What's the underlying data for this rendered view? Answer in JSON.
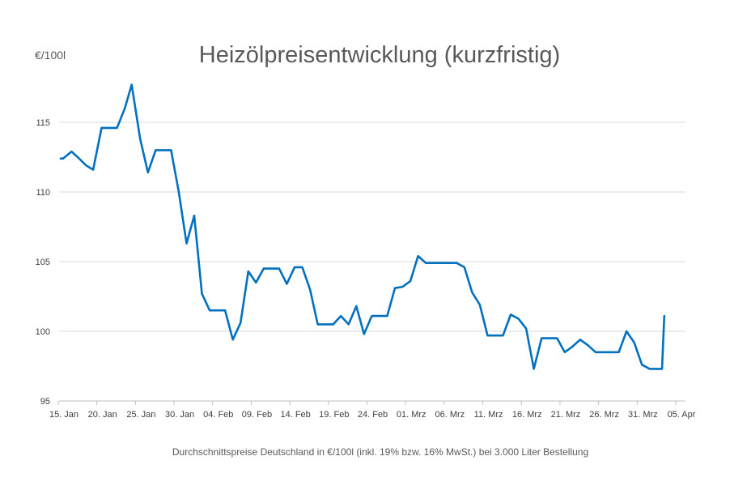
{
  "chart_data": {
    "type": "line",
    "title": "Heizölpreisentwicklung (kurzfristig)",
    "ylabel": "€/100l",
    "caption": "Durchschnittspreise Deutschland in €/100l (inkl. 19% bzw. 16%  MwSt.) bei 3.000 Liter Bestellung",
    "ylim": [
      95,
      118
    ],
    "yticks": [
      95,
      100,
      105,
      110,
      115
    ],
    "xlim": [
      0,
      80
    ],
    "xticks": [
      {
        "x": 0,
        "label": "15. Jan"
      },
      {
        "x": 5,
        "label": "20. Jan"
      },
      {
        "x": 10,
        "label": "25. Jan"
      },
      {
        "x": 15,
        "label": "30. Jan"
      },
      {
        "x": 20,
        "label": "04. Feb"
      },
      {
        "x": 25,
        "label": "09. Feb"
      },
      {
        "x": 30,
        "label": "14. Feb"
      },
      {
        "x": 35,
        "label": "19. Feb"
      },
      {
        "x": 40,
        "label": "24. Feb"
      },
      {
        "x": 45,
        "label": "01. Mrz"
      },
      {
        "x": 50,
        "label": "06. Mrz"
      },
      {
        "x": 55,
        "label": "11. Mrz"
      },
      {
        "x": 60,
        "label": "16. Mrz"
      },
      {
        "x": 65,
        "label": "21. Mrz"
      },
      {
        "x": 70,
        "label": "26. Mrz"
      },
      {
        "x": 75,
        "label": "31. Mrz"
      },
      {
        "x": 80,
        "label": "05. Apr"
      }
    ],
    "grid": true,
    "series": [
      {
        "color": "#0070c0",
        "x": [
          0,
          0.3,
          1.4,
          2.2,
          3.3,
          4.2,
          5.3,
          6.3,
          7.3,
          8.3,
          9.2,
          10.3,
          11.3,
          12.3,
          13.3,
          14.3,
          15.3,
          16.3,
          17.3,
          18.3,
          19.3,
          20.3,
          21.3,
          22.3,
          23.3,
          24.3,
          25.3,
          26.3,
          27.3,
          28.3,
          29.3,
          30.3,
          31.3,
          32.3,
          33.3,
          34.3,
          35.3,
          36.3,
          37.3,
          38.3,
          39.3,
          40.3,
          41.3,
          42.3,
          43.3,
          44.3,
          45.3,
          46.3,
          47.3,
          48.3,
          49.3,
          50.3,
          51.3,
          52.3,
          53.3,
          54.3,
          55.3,
          56.3,
          57.3,
          58.3,
          59.3,
          60.3,
          61.3,
          62.3,
          63.3,
          64.3,
          65.3,
          66.3,
          67.3,
          68.3,
          69.3,
          70.3,
          71.3,
          72.3,
          73.3,
          74.3,
          75.3,
          76.3,
          77.3,
          77.9,
          78.2
        ],
        "y": [
          112.4,
          112.4,
          112.9,
          112.5,
          111.9,
          111.6,
          114.6,
          114.6,
          114.6,
          116.0,
          117.7,
          113.8,
          111.4,
          113.0,
          113.0,
          113.0,
          110.0,
          106.3,
          108.3,
          102.7,
          101.5,
          101.5,
          101.5,
          99.4,
          100.6,
          104.3,
          103.5,
          104.5,
          104.5,
          104.5,
          103.4,
          104.6,
          104.6,
          103.0,
          100.5,
          100.5,
          100.5,
          101.1,
          100.5,
          101.8,
          99.8,
          101.1,
          101.1,
          101.1,
          103.1,
          103.2,
          103.6,
          105.4,
          104.9,
          104.9,
          104.9,
          104.9,
          104.9,
          104.6,
          102.8,
          101.9,
          99.7,
          99.7,
          99.7,
          101.2,
          100.9,
          100.2,
          97.3,
          99.5,
          99.5,
          99.5,
          98.5,
          98.9,
          99.4,
          99.0,
          98.5,
          98.5,
          98.5,
          98.5,
          100.0,
          99.2,
          97.6,
          97.3,
          97.3,
          97.3,
          101.1
        ]
      }
    ]
  }
}
